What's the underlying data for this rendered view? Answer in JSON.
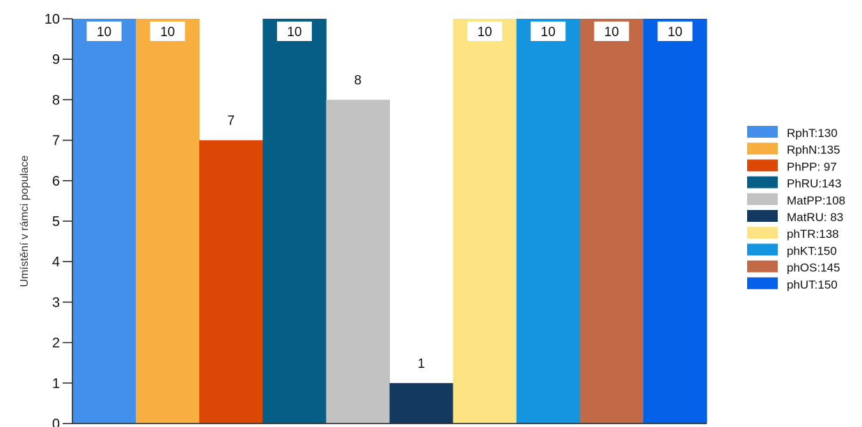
{
  "chart_data": {
    "type": "bar",
    "ylabel": "Umístění v rámci populace",
    "xlabel": "",
    "ylim": [
      0,
      10
    ],
    "yticks": [
      0,
      1,
      2,
      3,
      4,
      5,
      6,
      7,
      8,
      9,
      10
    ],
    "grid": false,
    "legend_position": "right",
    "categories": [
      "RphT:130",
      "RphN:135",
      "PhPP: 97",
      "PhRU:143",
      "MatPP:108",
      "MatRU: 83",
      "phTR:138",
      "phKT:150",
      "phOS:145",
      "phUT:150"
    ],
    "values": [
      10,
      10,
      7,
      10,
      8,
      1,
      10,
      10,
      10,
      10
    ],
    "data_labels": [
      "10",
      "10",
      "7",
      "10",
      "8",
      "1",
      "10",
      "10",
      "10",
      "10"
    ],
    "colors": [
      "#4390EC",
      "#F9AF40",
      "#DD4704",
      "#065E86",
      "#C2C2C2",
      "#133961",
      "#FEE382",
      "#1594DF",
      "#C16A45",
      "#0562E8"
    ]
  }
}
